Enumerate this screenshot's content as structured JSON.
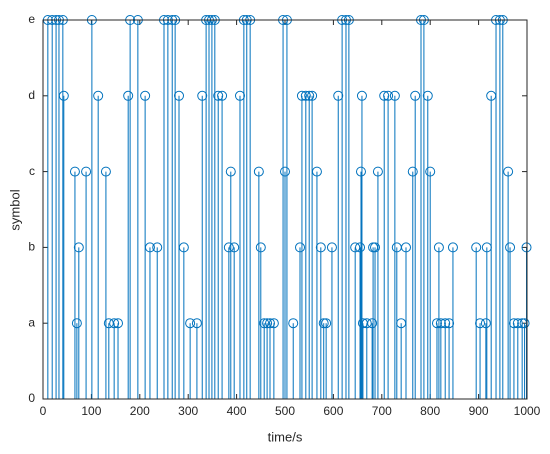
{
  "chart_data": {
    "type": "stem",
    "xlabel": "time/s",
    "ylabel": "symbol",
    "xlim": [
      0,
      1000
    ],
    "xticks": [
      0,
      100,
      200,
      300,
      400,
      500,
      600,
      700,
      800,
      900,
      1000
    ],
    "ylim": [
      0,
      5
    ],
    "yticks": [
      0,
      {
        "value": 1,
        "label": "a"
      },
      {
        "value": 2,
        "label": "b"
      },
      {
        "value": 3,
        "label": "c"
      },
      {
        "value": 4,
        "label": "d"
      },
      {
        "value": 5,
        "label": "e"
      }
    ],
    "series": [
      {
        "color": "#0072bd",
        "x": [
          10,
          19,
          27,
          33,
          41,
          101,
          180,
          196,
          250,
          258,
          267,
          273,
          337,
          343,
          349,
          355,
          415,
          421,
          428,
          496,
          504,
          618,
          626,
          632,
          781,
          787,
          936,
          944,
          950,
          43,
          114,
          176,
          211,
          281,
          329,
          362,
          370,
          407,
          535,
          543,
          550,
          556,
          610,
          659,
          705,
          713,
          727,
          769,
          795,
          926,
          66,
          89,
          130,
          388,
          446,
          500,
          566,
          657,
          692,
          764,
          800,
          961,
          74,
          221,
          236,
          291,
          384,
          395,
          450,
          531,
          574,
          597,
          645,
          655,
          682,
          686,
          731,
          750,
          818,
          847,
          895,
          917,
          965,
          999,
          70,
          136,
          147,
          155,
          304,
          318,
          457,
          463,
          469,
          477,
          517,
          580,
          585,
          661,
          669,
          680,
          740,
          814,
          822,
          831,
          839,
          903,
          915,
          973,
          981,
          990,
          995
        ],
        "values": [
          5,
          5,
          5,
          5,
          5,
          5,
          5,
          5,
          5,
          5,
          5,
          5,
          5,
          5,
          5,
          5,
          5,
          5,
          5,
          5,
          5,
          5,
          5,
          5,
          5,
          5,
          5,
          5,
          5,
          4,
          4,
          4,
          4,
          4,
          4,
          4,
          4,
          4,
          4,
          4,
          4,
          4,
          4,
          4,
          4,
          4,
          4,
          4,
          4,
          4,
          3,
          3,
          3,
          3,
          3,
          3,
          3,
          3,
          3,
          3,
          3,
          3,
          2,
          2,
          2,
          2,
          2,
          2,
          2,
          2,
          2,
          2,
          2,
          2,
          2,
          2,
          2,
          2,
          2,
          2,
          2,
          2,
          2,
          2,
          1,
          1,
          1,
          1,
          1,
          1,
          1,
          1,
          1,
          1,
          1,
          1,
          1,
          1,
          1,
          1,
          1,
          1,
          1,
          1,
          1,
          1,
          1,
          1,
          1,
          1,
          1
        ]
      }
    ]
  }
}
